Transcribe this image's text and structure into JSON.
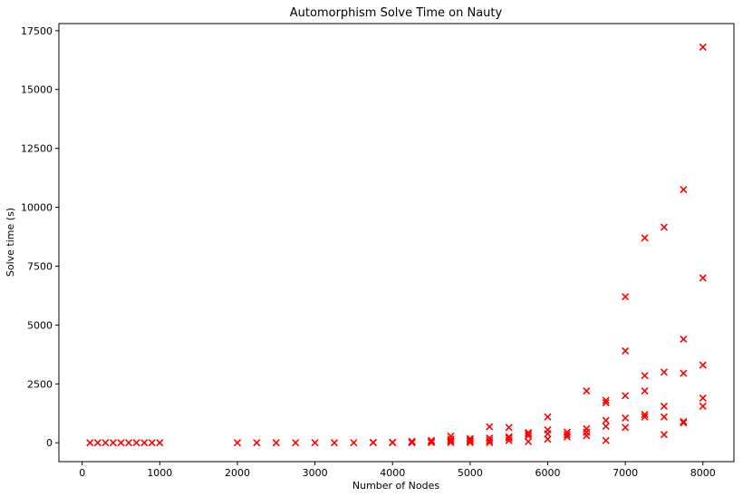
{
  "chart_data": {
    "type": "scatter",
    "title": "Automorphism Solve Time on Nauty",
    "xlabel": "Number of Nodes",
    "ylabel": "Solve time (s)",
    "xlim": [
      -300,
      8400
    ],
    "ylim": [
      -800,
      17800
    ],
    "xticks": [
      0,
      1000,
      2000,
      3000,
      4000,
      5000,
      6000,
      7000,
      8000
    ],
    "yticks": [
      0,
      2500,
      5000,
      7500,
      10000,
      12500,
      15000,
      17500
    ],
    "marker": "x",
    "marker_color": "#ff0000",
    "grid": false,
    "series": [
      {
        "name": "solve time",
        "points": [
          [
            100,
            0
          ],
          [
            200,
            0
          ],
          [
            300,
            0
          ],
          [
            400,
            0
          ],
          [
            500,
            0
          ],
          [
            600,
            0
          ],
          [
            700,
            0
          ],
          [
            800,
            0
          ],
          [
            900,
            0
          ],
          [
            1000,
            0
          ],
          [
            2000,
            0
          ],
          [
            2250,
            0
          ],
          [
            2500,
            0
          ],
          [
            2750,
            0
          ],
          [
            3000,
            0
          ],
          [
            3250,
            0
          ],
          [
            3500,
            0
          ],
          [
            3750,
            5
          ],
          [
            3750,
            15
          ],
          [
            4000,
            5
          ],
          [
            4000,
            20
          ],
          [
            4250,
            5
          ],
          [
            4250,
            30
          ],
          [
            4250,
            60
          ],
          [
            4500,
            10
          ],
          [
            4500,
            50
          ],
          [
            4500,
            100
          ],
          [
            4750,
            10
          ],
          [
            4750,
            80
          ],
          [
            4750,
            150
          ],
          [
            4750,
            280
          ],
          [
            5000,
            10
          ],
          [
            5000,
            60
          ],
          [
            5000,
            120
          ],
          [
            5000,
            180
          ],
          [
            5250,
            10
          ],
          [
            5250,
            100
          ],
          [
            5250,
            200
          ],
          [
            5250,
            680
          ],
          [
            5500,
            100
          ],
          [
            5500,
            200
          ],
          [
            5500,
            250
          ],
          [
            5500,
            650
          ],
          [
            5750,
            50
          ],
          [
            5750,
            300
          ],
          [
            5750,
            380
          ],
          [
            5750,
            430
          ],
          [
            6000,
            150
          ],
          [
            6000,
            380
          ],
          [
            6000,
            550
          ],
          [
            6000,
            1100
          ],
          [
            6250,
            250
          ],
          [
            6250,
            350
          ],
          [
            6250,
            450
          ],
          [
            6500,
            300
          ],
          [
            6500,
            450
          ],
          [
            6500,
            600
          ],
          [
            6500,
            2200
          ],
          [
            6750,
            100
          ],
          [
            6750,
            700
          ],
          [
            6750,
            950
          ],
          [
            6750,
            1700
          ],
          [
            6750,
            1800
          ],
          [
            7000,
            650
          ],
          [
            7000,
            1050
          ],
          [
            7000,
            2000
          ],
          [
            7000,
            3900
          ],
          [
            7000,
            6200
          ],
          [
            7250,
            1100
          ],
          [
            7250,
            1200
          ],
          [
            7250,
            2200
          ],
          [
            7250,
            2850
          ],
          [
            7250,
            8700
          ],
          [
            7500,
            350
          ],
          [
            7500,
            1100
          ],
          [
            7500,
            1550
          ],
          [
            7500,
            3000
          ],
          [
            7500,
            9150
          ],
          [
            7750,
            850
          ],
          [
            7750,
            900
          ],
          [
            7750,
            2950
          ],
          [
            7750,
            4400
          ],
          [
            7750,
            10750
          ],
          [
            8000,
            1550
          ],
          [
            8000,
            1900
          ],
          [
            8000,
            3300
          ],
          [
            8000,
            7000
          ],
          [
            8000,
            16800
          ]
        ]
      }
    ]
  }
}
